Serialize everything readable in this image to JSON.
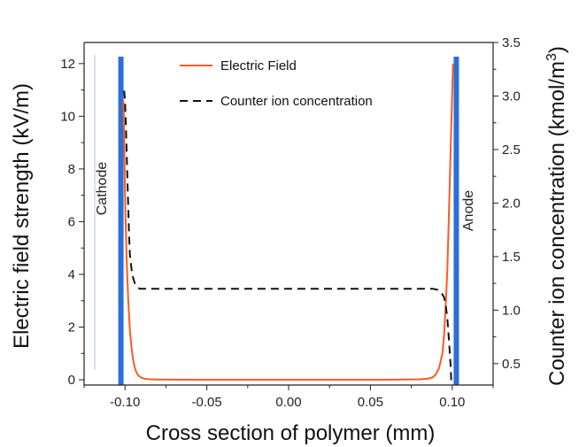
{
  "chart_data": {
    "type": "line",
    "xlabel": "Cross section of polymer (mm)",
    "ylabel": "Electric field strength (kV/m)",
    "y2label_base": "Counter ion concentration (kmol/m",
    "y2label_sup": "3",
    "y2label_close": ")",
    "xlim": [
      -0.125,
      0.125
    ],
    "ylim": [
      -0.2,
      12.8
    ],
    "y2lim": [
      0.3,
      3.5
    ],
    "xticks": [
      -0.1,
      -0.05,
      0.0,
      0.05,
      0.1
    ],
    "xtick_labels": [
      "-0.10",
      "-0.05",
      "0.00",
      "0.05",
      "0.10"
    ],
    "yticks": [
      0,
      2,
      4,
      6,
      8,
      10,
      12
    ],
    "ytick_labels": [
      "0",
      "2",
      "4",
      "6",
      "8",
      "10",
      "12"
    ],
    "y2ticks": [
      0.5,
      1.0,
      1.5,
      2.0,
      2.5,
      3.0,
      3.5
    ],
    "y2tick_labels": [
      "0.5",
      "1.0",
      "1.5",
      "2.0",
      "2.5",
      "3.0",
      "3.5"
    ],
    "legend_position": "top-center",
    "grid": false,
    "electrodes": [
      {
        "label": "Cathode",
        "x": -0.1025,
        "color": "#2b6fd8"
      },
      {
        "label": "Anode",
        "x": 0.1025,
        "color": "#2b6fd8"
      }
    ],
    "series": [
      {
        "name": "Electric Field",
        "axis": "left",
        "color": "#ff5a1f",
        "style": "solid",
        "x": [
          -0.101,
          -0.1005,
          -0.1,
          -0.099,
          -0.098,
          -0.097,
          -0.096,
          -0.095,
          -0.094,
          -0.093,
          -0.092,
          -0.09,
          -0.088,
          -0.085,
          -0.08,
          -0.06,
          -0.04,
          -0.02,
          0.0,
          0.02,
          0.04,
          0.06,
          0.08,
          0.085,
          0.088,
          0.09,
          0.092,
          0.094,
          0.095,
          0.096,
          0.097,
          0.098,
          0.099,
          0.1,
          0.1005
        ],
        "y": [
          10.6,
          9.2,
          7.0,
          4.6,
          3.0,
          1.9,
          1.2,
          0.75,
          0.45,
          0.28,
          0.17,
          0.08,
          0.04,
          0.02,
          0.01,
          0.0,
          0.0,
          0.0,
          0.0,
          0.0,
          0.0,
          0.0,
          0.02,
          0.04,
          0.09,
          0.2,
          0.45,
          1.0,
          1.7,
          2.8,
          4.2,
          6.3,
          8.7,
          10.9,
          12.0
        ]
      },
      {
        "name": "Counter ion concentration",
        "axis": "right",
        "color": "#111111",
        "style": "dashed",
        "x": [
          -0.1005,
          -0.1,
          -0.0995,
          -0.099,
          -0.0985,
          -0.098,
          -0.0975,
          -0.097,
          -0.096,
          -0.095,
          -0.094,
          -0.093,
          -0.091,
          -0.088,
          -0.085,
          -0.08,
          -0.06,
          -0.04,
          -0.02,
          0.0,
          0.02,
          0.04,
          0.06,
          0.08,
          0.088,
          0.091,
          0.093,
          0.095,
          0.096,
          0.097,
          0.098,
          0.099,
          0.0995
        ],
        "y": [
          3.05,
          2.95,
          2.75,
          2.5,
          2.2,
          1.95,
          1.7,
          1.52,
          1.38,
          1.3,
          1.25,
          1.22,
          1.2,
          1.2,
          1.2,
          1.2,
          1.2,
          1.2,
          1.2,
          1.2,
          1.2,
          1.2,
          1.2,
          1.2,
          1.2,
          1.19,
          1.17,
          1.12,
          1.05,
          0.92,
          0.72,
          0.48,
          0.3
        ]
      }
    ]
  }
}
